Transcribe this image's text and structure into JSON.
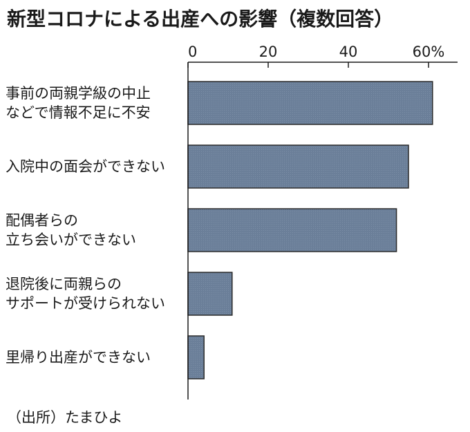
{
  "title": "新型コロナによる出産への影響（複数回答）",
  "source": "（出所）たまひよ",
  "colors": {
    "bar_fill": "#6b7f99",
    "bar_stroke": "#2a2a2a",
    "axis": "#1a1a1a"
  },
  "chart_data": {
    "type": "bar",
    "orientation": "horizontal",
    "title": "新型コロナによる出産への影響（複数回答）",
    "xlabel": "",
    "ylabel": "",
    "xlim": [
      0,
      66
    ],
    "ticks": [
      0,
      20,
      40,
      60
    ],
    "tick_labels": [
      "0",
      "20",
      "40",
      "60%"
    ],
    "categories": [
      "事前の両親学級の中止\nなどで情報不足に不安",
      "入院中の面会ができない",
      "配偶者らの\n立ち会いができない",
      "退院後に両親らの\nサポートが受けられない",
      "里帰り出産ができない"
    ],
    "values": [
      61,
      55,
      52,
      11,
      4
    ],
    "grid": false,
    "legend": "none"
  }
}
